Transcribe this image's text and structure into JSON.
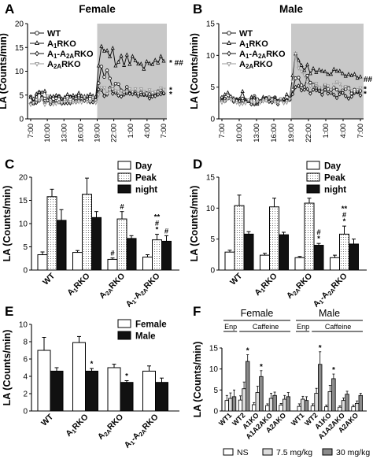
{
  "figure": {
    "colors": {
      "shade": "#c8c8c8",
      "black": "#111111",
      "gray": "#999999",
      "white": "#ffffff"
    }
  },
  "chart_data": [
    {
      "panel": "A",
      "type": "line",
      "title": "Female",
      "ylabel": "LA (Counts/min)",
      "ylim": [
        0,
        20
      ],
      "yticks": [
        "0",
        "5",
        "10",
        "15",
        "20"
      ],
      "xticks": [
        "7:00",
        "10:00",
        "13:00",
        "16:00",
        "19:00",
        "22:00",
        "1:00",
        "4:00",
        "7:00"
      ],
      "shade_from_tick": 4,
      "annotations": [
        {
          "text": "* ##",
          "at_y": 11.9
        },
        {
          "text": "*",
          "at_y": 6.2
        },
        {
          "text": "*",
          "at_y": 5.3
        }
      ],
      "series": [
        {
          "name": "WT",
          "marker": "circle",
          "color": "#111111",
          "fill": "#ffffff",
          "values": [
            4.7,
            3.2,
            4.6,
            5.6,
            4.6,
            4.3,
            4.0,
            4.5,
            3.6,
            4.3,
            4.8,
            3.6,
            4.1,
            4.2,
            4.7,
            4.7,
            4.3,
            4.9,
            4.2,
            4.4,
            4.5,
            4.8,
            4.2,
            4.5,
            7.5,
            11.0,
            8.8,
            10.2,
            8.5,
            6.3,
            7.4,
            7.3,
            6.0,
            5.6,
            6.7,
            5.4,
            5.6,
            5.6,
            5.1,
            5.5,
            5.0,
            5.4,
            5.2,
            4.9,
            5.0,
            5.8,
            6.0,
            5.3
          ]
        },
        {
          "name": "A1RKO",
          "label_main": "A",
          "label_sub": "1",
          "label_tail": "RKO",
          "marker": "triangle",
          "color": "#111111",
          "fill": "#ffffff",
          "values": [
            4.5,
            3.3,
            5.2,
            5.6,
            5.5,
            5.8,
            4.1,
            4.7,
            4.7,
            4.9,
            4.7,
            4.2,
            4.5,
            5.1,
            4.6,
            4.9,
            4.7,
            5.4,
            4.8,
            4.7,
            4.8,
            5.1,
            4.8,
            4.6,
            11.1,
            15.2,
            14.2,
            14.3,
            13.0,
            14.8,
            11.1,
            11.9,
            13.2,
            11.2,
            13.4,
            11.4,
            13.1,
            12.2,
            11.5,
            11.5,
            10.4,
            12.0,
            11.6,
            11.4,
            12.3,
            11.7,
            13.1,
            12.1
          ]
        },
        {
          "name": "A1-A2ARKO",
          "label_main": "A",
          "label_sub": "1",
          "label_tail": "-A",
          "label_sub2": "2A",
          "label_tail2": "RKO",
          "marker": "diamond",
          "color": "#111111",
          "fill": "#ffffff",
          "values": [
            3.2,
            4.2,
            3.4,
            3.8,
            4.5,
            3.3,
            3.9,
            3.1,
            3.3,
            3.4,
            3.5,
            3.2,
            3.3,
            3.3,
            3.3,
            3.9,
            3.5,
            3.9,
            3.7,
            3.8,
            4.1,
            3.5,
            3.5,
            4.0,
            6.2,
            6.1,
            4.8,
            5.1,
            6.5,
            5.3,
            5.5,
            4.9,
            4.7,
            5.1,
            5.4,
            5.3,
            5.2,
            5.3,
            4.8,
            5.1,
            5.2,
            5.0,
            4.3,
            4.7,
            4.8,
            5.1,
            5.2,
            5.4
          ]
        },
        {
          "name": "A2ARKO",
          "label_main": "A",
          "label_sub": "2A",
          "label_tail": "RKO",
          "marker": "triangle-down",
          "color": "#999999",
          "fill": "#ffffff",
          "values": [
            3.0,
            3.4,
            4.0,
            3.9,
            4.2,
            3.0,
            4.8,
            3.6,
            3.1,
            3.2,
            3.5,
            3.4,
            3.6,
            4.3,
            3.6,
            3.5,
            3.5,
            3.6,
            3.5,
            4.6,
            3.6,
            3.7,
            4.5,
            3.4,
            5.1,
            6.6,
            6.6,
            5.3,
            6.1,
            6.8,
            5.9,
            5.7,
            5.9,
            5.6,
            5.7,
            6.3,
            5.7,
            6.3,
            5.3,
            6.3,
            5.8,
            5.3,
            6.1,
            5.5,
            5.7,
            5.7,
            6.5,
            6.2
          ]
        }
      ]
    },
    {
      "panel": "B",
      "type": "line",
      "title": "Male",
      "ylabel": "LA (Counts/min)",
      "ylim": [
        0,
        15
      ],
      "yticks": [
        "0",
        "5",
        "10",
        "15"
      ],
      "xticks": [
        "7:00",
        "10:00",
        "13:00",
        "16:00",
        "19:00",
        "22:00",
        "1:00",
        "4:00",
        "7:00"
      ],
      "shade_from_tick": 4,
      "annotations": [
        {
          "text": "##",
          "at_y": 6.3
        },
        {
          "text": "*",
          "at_y": 4.8
        },
        {
          "text": "*",
          "at_y": 4.0
        }
      ],
      "series": [
        {
          "name": "WT",
          "marker": "circle",
          "color": "#111111",
          "fill": "#ffffff",
          "values": [
            3.1,
            2.8,
            3.2,
            3.2,
            2.8,
            3.1,
            2.8,
            3.2,
            3.0,
            2.9,
            2.9,
            3.6,
            3.1,
            2.8,
            2.9,
            3.3,
            3.4,
            3.2,
            3.4,
            2.8,
            3.1,
            2.7,
            3.0,
            3.0,
            4.6,
            6.4,
            6.5,
            5.3,
            5.0,
            6.8,
            5.7,
            5.4,
            4.8,
            4.4,
            4.7,
            5.3,
            4.7,
            4.5,
            4.9,
            4.6,
            4.1,
            4.5,
            4.7,
            4.9,
            4.0,
            4.6,
            4.2,
            4.4
          ]
        },
        {
          "name": "A1RKO",
          "label_main": "A",
          "label_sub": "1",
          "label_tail": "RKO",
          "marker": "triangle",
          "color": "#111111",
          "fill": "#ffffff",
          "values": [
            2.9,
            3.8,
            4.1,
            3.5,
            3.2,
            3.0,
            3.1,
            4.3,
            2.8,
            2.7,
            3.4,
            3.3,
            2.3,
            2.7,
            3.4,
            3.1,
            3.2,
            2.9,
            3.2,
            2.8,
            3.0,
            3.1,
            3.8,
            3.3,
            6.8,
            10.2,
            9.2,
            8.4,
            7.6,
            8.5,
            7.1,
            7.9,
            7.3,
            7.7,
            7.5,
            7.4,
            7.0,
            7.0,
            7.8,
            7.5,
            7.5,
            7.1,
            6.7,
            7.0,
            6.8,
            7.0,
            6.4,
            6.6
          ]
        },
        {
          "name": "A1-A2ARKO",
          "label_main": "A",
          "label_sub": "1",
          "label_tail": "-A",
          "label_sub2": "2A",
          "label_tail2": "RKO",
          "marker": "diamond",
          "color": "#111111",
          "fill": "#ffffff",
          "values": [
            3.4,
            3.2,
            3.3,
            3.5,
            2.7,
            2.9,
            2.8,
            2.5,
            2.7,
            2.9,
            2.3,
            2.3,
            2.6,
            2.8,
            3.1,
            3.2,
            2.7,
            2.6,
            3.0,
            2.3,
            3.1,
            2.6,
            2.9,
            3.0,
            3.9,
            5.0,
            5.2,
            4.5,
            4.6,
            4.7,
            4.0,
            4.6,
            4.5,
            4.4,
            3.8,
            4.6,
            4.0,
            4.1,
            3.8,
            3.3,
            3.9,
            4.1,
            3.6,
            3.2,
            3.5,
            4.1,
            4.3,
            3.7
          ]
        },
        {
          "name": "A2ARKO",
          "label_main": "A",
          "label_sub": "2A",
          "label_tail": "RKO",
          "marker": "triangle-down",
          "color": "#999999",
          "fill": "#ffffff",
          "values": [
            2.6,
            2.8,
            3.2,
            3.1,
            2.9,
            2.6,
            2.3,
            2.4,
            2.5,
            3.0,
            2.7,
            2.5,
            2.8,
            2.6,
            2.8,
            2.9,
            3.4,
            3.0,
            2.7,
            2.6,
            3.2,
            2.5,
            2.6,
            3.1,
            5.9,
            10.3,
            8.0,
            7.5,
            6.9,
            5.8,
            5.2,
            5.3,
            5.6,
            5.0,
            4.8,
            5.4,
            5.2,
            4.6,
            5.4,
            5.8,
            5.5,
            5.0,
            5.1,
            4.7,
            4.5,
            4.3,
            4.6,
            4.9
          ]
        }
      ]
    },
    {
      "panel": "C",
      "type": "bar",
      "ylabel": "LA (Counts/min)",
      "ylim": [
        0,
        20
      ],
      "yticks": [
        "0",
        "5",
        "10",
        "15",
        "20"
      ],
      "categories": [
        {
          "main": "WT",
          "sub": "",
          "tail": ""
        },
        {
          "main": "A",
          "sub": "1",
          "tail": "RKO"
        },
        {
          "main": "A",
          "sub": "2A",
          "tail": "RKO"
        },
        {
          "main": "A",
          "sub": "1",
          "tail": "-A",
          "sub2": "2A",
          "tail2": "RKO"
        }
      ],
      "legend": [
        "Day",
        "Peak",
        "night"
      ],
      "series": [
        {
          "name": "Day",
          "fill": "white",
          "values": [
            3.3,
            3.8,
            2.3,
            2.8
          ],
          "errors": [
            0.6,
            0.4,
            0.3,
            0.5
          ],
          "labels": [
            "",
            "",
            "#",
            ""
          ]
        },
        {
          "name": "Peak",
          "fill": "dots",
          "values": [
            15.8,
            16.3,
            11.0,
            6.5
          ],
          "errors": [
            1.6,
            3.5,
            1.6,
            1.2
          ],
          "labels": [
            "",
            "",
            "#",
            "**\n#\n*"
          ]
        },
        {
          "name": "night",
          "fill": "black",
          "values": [
            10.7,
            11.3,
            6.8,
            6.2
          ],
          "errors": [
            2.3,
            1.3,
            0.6,
            1.2
          ],
          "labels": [
            "",
            "",
            "",
            "#"
          ]
        }
      ]
    },
    {
      "panel": "D",
      "type": "bar",
      "ylabel": "LA (Counts/min)",
      "ylim": [
        0,
        15
      ],
      "yticks": [
        "0",
        "5",
        "10",
        "15"
      ],
      "categories": [
        {
          "main": "WT",
          "sub": "",
          "tail": ""
        },
        {
          "main": "A",
          "sub": "1",
          "tail": "RKO"
        },
        {
          "main": "A",
          "sub": "2A",
          "tail": "RKO"
        },
        {
          "main": "A",
          "sub": "1",
          "tail": "-A",
          "sub2": "2A",
          "tail2": "RKO"
        }
      ],
      "legend": [
        "Day",
        "Peak",
        "night"
      ],
      "series": [
        {
          "name": "Day",
          "fill": "white",
          "values": [
            2.9,
            2.4,
            2.0,
            2.0
          ],
          "errors": [
            0.3,
            0.3,
            0.2,
            0.4
          ],
          "labels": [
            "",
            "",
            "",
            ""
          ]
        },
        {
          "name": "Peak",
          "fill": "dots",
          "values": [
            10.4,
            10.2,
            10.8,
            5.8
          ],
          "errors": [
            1.7,
            1.4,
            0.8,
            1.3
          ],
          "labels": [
            "",
            "",
            "",
            "**\n#\n*"
          ]
        },
        {
          "name": "night",
          "fill": "black",
          "values": [
            5.8,
            5.7,
            4.0,
            4.2
          ],
          "errors": [
            0.4,
            0.4,
            0.3,
            0.8
          ],
          "labels": [
            "",
            "",
            "#\n*",
            ""
          ]
        }
      ]
    },
    {
      "panel": "E",
      "type": "bar",
      "ylabel": "LA (Counts/min)",
      "ylim": [
        0,
        10
      ],
      "yticks": [
        "0",
        "2",
        "4",
        "6",
        "8",
        "10"
      ],
      "categories": [
        {
          "main": "WT",
          "sub": "",
          "tail": ""
        },
        {
          "main": "A",
          "sub": "1",
          "tail": "RKO"
        },
        {
          "main": "A",
          "sub": "2A",
          "tail": "RKO"
        },
        {
          "main": "A",
          "sub": "1",
          "tail": "-A",
          "sub2": "2A",
          "tail2": "RKO"
        }
      ],
      "legend": [
        "Female",
        "Male"
      ],
      "series": [
        {
          "name": "Female",
          "fill": "white",
          "values": [
            7.0,
            7.9,
            5.0,
            4.6
          ],
          "errors": [
            1.5,
            0.7,
            0.4,
            0.6
          ],
          "labels": [
            "",
            "",
            "",
            ""
          ]
        },
        {
          "name": "Male",
          "fill": "black",
          "values": [
            4.6,
            4.6,
            3.3,
            3.3
          ],
          "errors": [
            0.4,
            0.3,
            0.2,
            0.5
          ],
          "labels": [
            "",
            "*",
            "*",
            ""
          ]
        }
      ]
    },
    {
      "panel": "F",
      "type": "bar",
      "ylabel": "LA (Counts/min)",
      "ylim": [
        0,
        15
      ],
      "yticks": [
        "0",
        "5",
        "10",
        "15"
      ],
      "group_titles": [
        "Female",
        "Male"
      ],
      "brackets": [
        [
          "Enp",
          "Caffeine"
        ],
        [
          "Enp",
          "Caffeine"
        ]
      ],
      "categories": [
        "WT1",
        "WT2",
        "A1KO",
        "A1A2AKO",
        "A2AKO",
        "WT1",
        "WT2",
        "A1KO",
        "A1A2AKO",
        "A2AKO"
      ],
      "xlabels": [
        "WT1",
        "WT2",
        "A1KO",
        "A1A2AKO",
        "A2AKO"
      ],
      "legend": [
        "NS",
        "7.5 mg/kg",
        "30 mg/kg"
      ],
      "series": [
        {
          "name": "NS",
          "fill": "white",
          "values": [
            2.5,
            2.6,
            1.5,
            1.3,
            1.4,
            1.1,
            1.2,
            1.0,
            0.9,
            1.0
          ],
          "errors": [
            1.2,
            1.0,
            0.5,
            0.4,
            0.4,
            0.6,
            0.5,
            0.4,
            0.3,
            0.4
          ]
        },
        {
          "name": "7.5 mg/kg",
          "fill": "light",
          "values": [
            3.0,
            5.3,
            4.4,
            3.0,
            2.8,
            2.8,
            4.2,
            4.6,
            2.5,
            1.8
          ],
          "errors": [
            1.3,
            1.6,
            1.5,
            1.2,
            0.9,
            0.7,
            1.2,
            1.5,
            0.6,
            0.6
          ]
        },
        {
          "name": "30 mg/kg",
          "fill": "gray",
          "values": [
            3.4,
            11.8,
            8.2,
            3.7,
            3.4,
            2.5,
            11.1,
            7.7,
            4.0,
            3.7
          ],
          "errors": [
            1.6,
            1.6,
            1.4,
            0.8,
            1.0,
            0.9,
            3.0,
            1.1,
            0.7,
            0.5
          ],
          "labels": [
            "",
            "*",
            "*",
            "",
            "",
            "",
            "*",
            "*",
            "",
            ""
          ]
        }
      ]
    }
  ]
}
